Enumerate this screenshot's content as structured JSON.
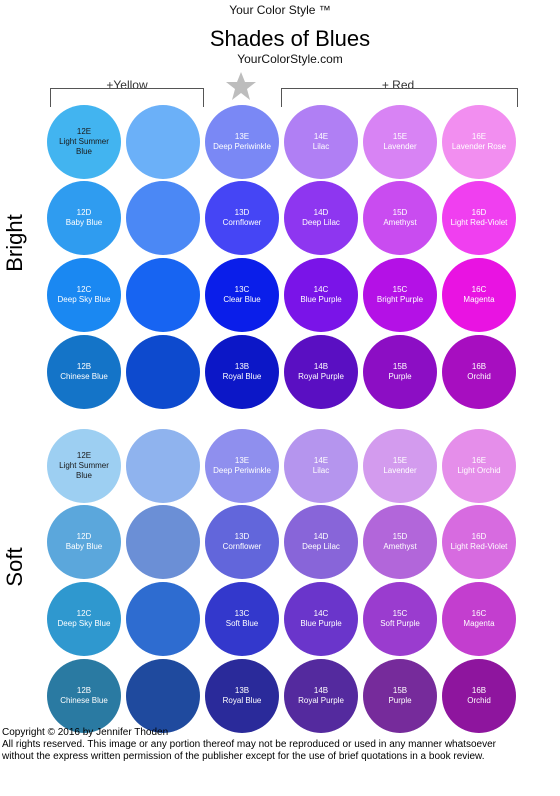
{
  "header": {
    "brand": "Your Color Style ™",
    "title": "Shades of Blues",
    "site": "YourColorStyle.com"
  },
  "brackets": {
    "left_label": "+Yellow",
    "right_label": "+ Red",
    "center_icon": "star-icon"
  },
  "sections": [
    {
      "label": "Bright",
      "rows": [
        [
          {
            "color": "#42B4F0",
            "code": "12E",
            "name": "Light Summer Blue",
            "text_color": "#1a1a1a"
          },
          {
            "color": "#6BB0F8",
            "code": "",
            "name": "",
            "text_color": "#ffffff"
          },
          {
            "color": "#7A88F5",
            "code": "13E",
            "name": "Deep Periwinkle",
            "text_color": "#ffffff"
          },
          {
            "color": "#B07FF4",
            "code": "14E",
            "name": "Lilac",
            "text_color": "#ffffff"
          },
          {
            "color": "#D883F4",
            "code": "15E",
            "name": "Lavender",
            "text_color": "#ffffff"
          },
          {
            "color": "#F28EF0",
            "code": "16E",
            "name": "Lavender Rose",
            "text_color": "#ffffff"
          }
        ],
        [
          {
            "color": "#2F9CF0",
            "code": "12D",
            "name": "Baby Blue",
            "text_color": "#ffffff"
          },
          {
            "color": "#4B88F5",
            "code": "",
            "name": "",
            "text_color": "#ffffff"
          },
          {
            "color": "#4545F5",
            "code": "13D",
            "name": "Cornflower",
            "text_color": "#ffffff"
          },
          {
            "color": "#8E36F0",
            "code": "14D",
            "name": "Deep Lilac",
            "text_color": "#ffffff"
          },
          {
            "color": "#C94CF0",
            "code": "15D",
            "name": "Amethyst",
            "text_color": "#ffffff"
          },
          {
            "color": "#F03FF0",
            "code": "16D",
            "name": "Light Red-Violet",
            "text_color": "#ffffff"
          }
        ],
        [
          {
            "color": "#1A88F2",
            "code": "12C",
            "name": "Deep Sky Blue",
            "text_color": "#ffffff"
          },
          {
            "color": "#1764F2",
            "code": "",
            "name": "",
            "text_color": "#ffffff"
          },
          {
            "color": "#0A1EEA",
            "code": "13C",
            "name": "Clear Blue",
            "text_color": "#ffffff"
          },
          {
            "color": "#7A14E8",
            "code": "14C",
            "name": "Blue Purple",
            "text_color": "#ffffff"
          },
          {
            "color": "#B411E6",
            "code": "15C",
            "name": "Bright Purple",
            "text_color": "#ffffff"
          },
          {
            "color": "#E913E2",
            "code": "16C",
            "name": "Magenta",
            "text_color": "#ffffff"
          }
        ],
        [
          {
            "color": "#1474C8",
            "code": "12B",
            "name": "Chinese Blue",
            "text_color": "#ffffff"
          },
          {
            "color": "#0D4ACE",
            "code": "",
            "name": "",
            "text_color": "#ffffff"
          },
          {
            "color": "#0C17C7",
            "code": "13B",
            "name": "Royal Blue",
            "text_color": "#ffffff"
          },
          {
            "color": "#5A0FC2",
            "code": "14B",
            "name": "Royal Purple",
            "text_color": "#ffffff"
          },
          {
            "color": "#8C0EC4",
            "code": "15B",
            "name": "Purple",
            "text_color": "#ffffff"
          },
          {
            "color": "#A70EC0",
            "code": "16B",
            "name": "Orchid",
            "text_color": "#ffffff"
          }
        ]
      ]
    },
    {
      "label": "Soft",
      "rows": [
        [
          {
            "color": "#9DCFF2",
            "code": "12E",
            "name": "Light Summer Blue",
            "text_color": "#1a1a1a"
          },
          {
            "color": "#8FB3EE",
            "code": "",
            "name": "",
            "text_color": "#ffffff"
          },
          {
            "color": "#8F8FEE",
            "code": "13E",
            "name": "Deep Periwinkle",
            "text_color": "#ffffff"
          },
          {
            "color": "#B595EE",
            "code": "14E",
            "name": "Lilac",
            "text_color": "#ffffff"
          },
          {
            "color": "#D39BEE",
            "code": "15E",
            "name": "Lavender",
            "text_color": "#ffffff"
          },
          {
            "color": "#E58EEA",
            "code": "16E",
            "name": "Light Orchid",
            "text_color": "#ffffff"
          }
        ],
        [
          {
            "color": "#5BA7DC",
            "code": "12D",
            "name": "Baby Blue",
            "text_color": "#ffffff"
          },
          {
            "color": "#6B8FD6",
            "code": "",
            "name": "",
            "text_color": "#ffffff"
          },
          {
            "color": "#6266DB",
            "code": "13D",
            "name": "Cornflower",
            "text_color": "#ffffff"
          },
          {
            "color": "#8865D9",
            "code": "14D",
            "name": "Deep Lilac",
            "text_color": "#ffffff"
          },
          {
            "color": "#B266DA",
            "code": "15D",
            "name": "Amethyst",
            "text_color": "#ffffff"
          },
          {
            "color": "#D76BE0",
            "code": "16D",
            "name": "Light Red-Violet",
            "text_color": "#ffffff"
          }
        ],
        [
          {
            "color": "#2F98CF",
            "code": "12C",
            "name": "Deep Sky Blue",
            "text_color": "#ffffff"
          },
          {
            "color": "#2E6CD0",
            "code": "",
            "name": "",
            "text_color": "#ffffff"
          },
          {
            "color": "#3338CC",
            "code": "13C",
            "name": "Soft Blue",
            "text_color": "#ffffff"
          },
          {
            "color": "#6A35CB",
            "code": "14C",
            "name": "Blue Purple",
            "text_color": "#ffffff"
          },
          {
            "color": "#9A3CCF",
            "code": "15C",
            "name": "Soft Purple",
            "text_color": "#ffffff"
          },
          {
            "color": "#C33ECF",
            "code": "16C",
            "name": "Magenta",
            "text_color": "#ffffff"
          }
        ],
        [
          {
            "color": "#2A7AA2",
            "code": "12B",
            "name": "Chinese Blue",
            "text_color": "#ffffff"
          },
          {
            "color": "#1F4A9E",
            "code": "",
            "name": "",
            "text_color": "#ffffff"
          },
          {
            "color": "#2A2A9A",
            "code": "13B",
            "name": "Royal Blue",
            "text_color": "#ffffff"
          },
          {
            "color": "#542A9E",
            "code": "14B",
            "name": "Royal Purple",
            "text_color": "#ffffff"
          },
          {
            "color": "#762B9B",
            "code": "15B",
            "name": "Purple",
            "text_color": "#ffffff"
          },
          {
            "color": "#8E159E",
            "code": "16B",
            "name": "Orchid",
            "text_color": "#ffffff"
          }
        ]
      ]
    }
  ],
  "copyright": {
    "line1": "Copyright © 2016 by Jennifer Thoden",
    "line2": "All rights reserved. This image or any portion thereof may not be reproduced or used in any manner whatsoever",
    "line3": "without the express written permission of the publisher except for the use of brief quotations in a book review."
  }
}
